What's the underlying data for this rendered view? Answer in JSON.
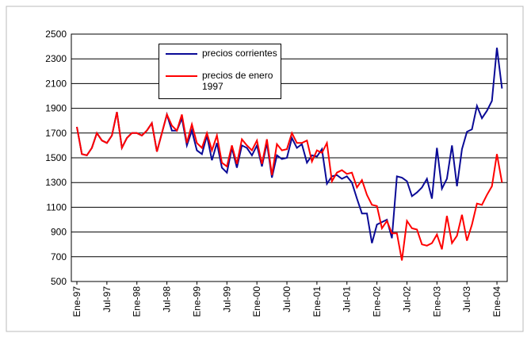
{
  "chart_data": {
    "type": "line",
    "categories": [
      "Ene-97",
      null,
      null,
      null,
      null,
      null,
      "Jul-97",
      null,
      null,
      null,
      null,
      null,
      "Ene-98",
      null,
      null,
      null,
      null,
      null,
      "Jul-98",
      null,
      null,
      null,
      null,
      null,
      "Ene-99",
      null,
      null,
      null,
      null,
      null,
      "Jul-99",
      null,
      null,
      null,
      null,
      null,
      "Ene-00",
      null,
      null,
      null,
      null,
      null,
      "Jul-00",
      null,
      null,
      null,
      null,
      null,
      "Ene-01",
      null,
      null,
      null,
      null,
      null,
      "Jul-01",
      null,
      null,
      null,
      null,
      null,
      "Ene-02",
      null,
      null,
      null,
      null,
      null,
      "Jul-02",
      null,
      null,
      null,
      null,
      null,
      "Ene-03",
      null,
      null,
      null,
      null,
      null,
      "Jul-03",
      null,
      null,
      null,
      null,
      null,
      "Ene-04",
      null
    ],
    "series": [
      {
        "name": "precios corrientes",
        "color": "#0a0a96",
        "values": [
          1750,
          1530,
          1520,
          1580,
          1700,
          1640,
          1620,
          1680,
          1870,
          1580,
          1660,
          1700,
          1700,
          1680,
          1720,
          1780,
          1550,
          1700,
          1850,
          1720,
          1720,
          1820,
          1600,
          1720,
          1560,
          1530,
          1680,
          1480,
          1620,
          1420,
          1380,
          1580,
          1420,
          1600,
          1580,
          1520,
          1600,
          1430,
          1620,
          1340,
          1520,
          1490,
          1500,
          1660,
          1580,
          1610,
          1460,
          1520,
          1510,
          1570,
          1290,
          1350,
          1360,
          1330,
          1350,
          1300,
          1170,
          1050,
          1050,
          810,
          960,
          980,
          1000,
          850,
          1350,
          1340,
          1310,
          1190,
          1220,
          1260,
          1330,
          1170,
          1580,
          1250,
          1330,
          1600,
          1270,
          1570,
          1710,
          1730,
          1920,
          1820,
          1880,
          1960,
          2390,
          2060
        ]
      },
      {
        "name": "precios de enero 1997",
        "color": "#ff0000",
        "values": [
          1750,
          1530,
          1520,
          1580,
          1700,
          1640,
          1620,
          1680,
          1870,
          1580,
          1660,
          1700,
          1700,
          1680,
          1720,
          1780,
          1550,
          1700,
          1850,
          1760,
          1720,
          1850,
          1620,
          1770,
          1620,
          1580,
          1700,
          1560,
          1680,
          1460,
          1430,
          1600,
          1450,
          1650,
          1600,
          1560,
          1640,
          1450,
          1650,
          1360,
          1610,
          1560,
          1570,
          1700,
          1620,
          1620,
          1640,
          1470,
          1560,
          1540,
          1620,
          1310,
          1380,
          1400,
          1370,
          1380,
          1260,
          1320,
          1200,
          1120,
          1110,
          930,
          990,
          890,
          890,
          670,
          990,
          930,
          920,
          800,
          790,
          810,
          880,
          760,
          1030,
          810,
          870,
          1040,
          830,
          960,
          1130,
          1120,
          1200,
          1270,
          1530,
          1300
        ]
      }
    ],
    "ylim": [
      500,
      2500
    ],
    "yticks": [
      500,
      700,
      900,
      1100,
      1300,
      1500,
      1700,
      1900,
      2100,
      2300,
      2500
    ],
    "grid": true
  }
}
